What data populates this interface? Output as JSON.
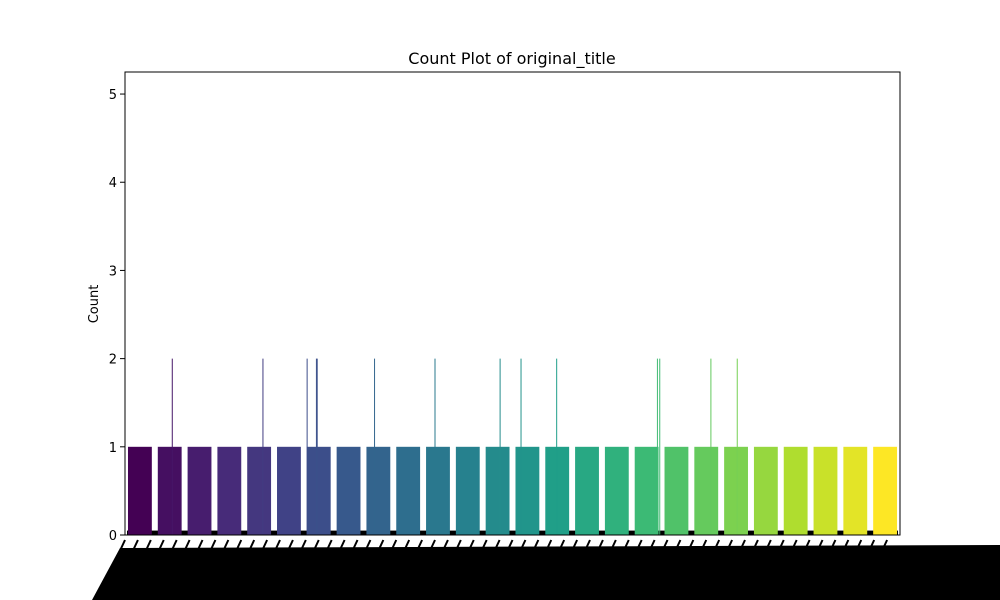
{
  "chart_data": {
    "type": "bar",
    "title": "Count Plot of original_title",
    "xlabel": "",
    "ylabel": "Count",
    "ylim": [
      0,
      5.25
    ],
    "yticks": [
      0,
      1,
      2,
      3,
      4,
      5
    ],
    "grid": false,
    "colormap": "viridis",
    "palette_start": "#440154",
    "palette_end": "#fde725",
    "bar_count": 26,
    "values": [
      1,
      1,
      1,
      1,
      1,
      1,
      1,
      1,
      1,
      1,
      1,
      1,
      1,
      1,
      1,
      1,
      1,
      1,
      1,
      1,
      1,
      1,
      1,
      1,
      1,
      1
    ],
    "x_tick_labels_note": "x tick labels are rotated and fully overlapped (illegible)",
    "overlay_lines": {
      "description": "thin bars reaching count 2 among many overlapping categories",
      "x_positions_fraction": [
        0.061,
        0.178,
        0.235,
        0.247,
        0.248,
        0.322,
        0.4,
        0.484,
        0.511,
        0.557,
        0.687,
        0.69,
        0.756,
        0.79
      ],
      "value": 2
    },
    "thin_baseline_value": 0.05
  }
}
